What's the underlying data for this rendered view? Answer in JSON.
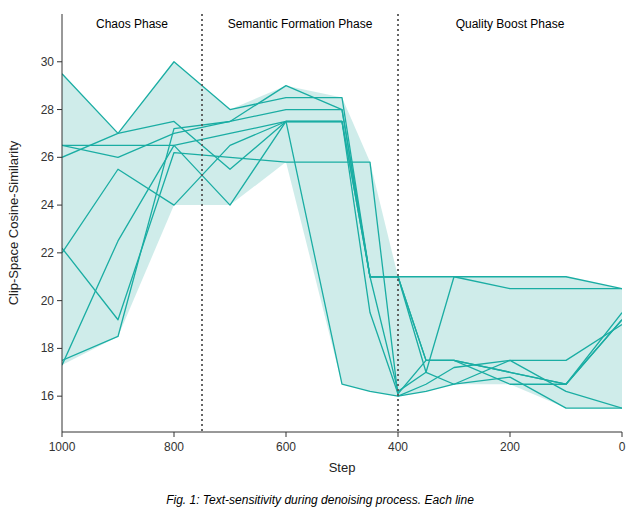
{
  "chart_data": {
    "type": "line",
    "xlabel": "Step",
    "ylabel": "Clip-Space Cosine-Similarity",
    "caption": "Fig. 1: Text-sensitivity during denoising process. Each line",
    "xlim": [
      1000,
      0
    ],
    "ylim": [
      14.5,
      32
    ],
    "xticks": [
      1000,
      800,
      600,
      400,
      200,
      0
    ],
    "yticks": [
      16,
      18,
      20,
      22,
      24,
      26,
      28,
      30
    ],
    "grid": false,
    "color": "#1aada3",
    "x": [
      1000,
      900,
      800,
      700,
      600,
      500,
      450,
      400,
      350,
      300,
      200,
      100,
      0
    ],
    "series": [
      {
        "values": [
          17.3,
          22.5,
          26.5,
          27.0,
          27.5,
          16.5,
          16.2,
          16.0,
          16.5,
          17.2,
          17.5,
          16.2,
          15.5
        ]
      },
      {
        "values": [
          29.5,
          27.0,
          30.0,
          28.0,
          28.5,
          28.5,
          21.0,
          21.0,
          17.5,
          17.5,
          17.0,
          16.5,
          19.2
        ]
      },
      {
        "values": [
          26.5,
          26.0,
          27.0,
          27.5,
          29.0,
          28.0,
          21.0,
          16.2,
          17.0,
          21.0,
          21.0,
          21.0,
          20.5
        ]
      },
      {
        "values": [
          22.2,
          19.2,
          26.2,
          26.0,
          25.8,
          25.8,
          25.8,
          16.0,
          16.2,
          16.5,
          16.8,
          15.5,
          15.5
        ]
      },
      {
        "values": [
          26.0,
          27.0,
          27.5,
          25.5,
          27.5,
          27.5,
          19.5,
          16.1,
          17.5,
          17.5,
          16.5,
          16.5,
          19.2
        ]
      },
      {
        "values": [
          22.0,
          25.5,
          24.0,
          26.5,
          27.5,
          27.5,
          21.0,
          21.0,
          21.0,
          21.0,
          20.5,
          20.5,
          20.5
        ]
      },
      {
        "values": [
          26.5,
          26.5,
          26.5,
          24.0,
          27.5,
          27.5,
          21.0,
          21.0,
          17.0,
          16.5,
          17.5,
          17.5,
          19.0
        ]
      },
      {
        "values": [
          17.5,
          18.5,
          27.2,
          27.5,
          28.0,
          28.0,
          21.0,
          21.0,
          17.5,
          17.5,
          17.0,
          16.5,
          19.5
        ]
      }
    ],
    "envelope": {
      "color": "#a8ddd8",
      "lower": [
        17.3,
        18.5,
        24.0,
        24.0,
        25.8,
        16.5,
        16.2,
        16.0,
        16.2,
        16.5,
        16.5,
        15.5,
        15.5
      ],
      "upper": [
        29.5,
        27.0,
        30.0,
        28.0,
        29.0,
        28.5,
        25.8,
        21.0,
        21.0,
        21.0,
        21.0,
        21.0,
        20.5
      ]
    },
    "vlines": {
      "values": [
        750,
        400
      ],
      "color": "#555555",
      "line_style": "dotted"
    },
    "annotations": [
      "Chaos Phase",
      "Semantic Formation Phase",
      "Quality Boost Phase"
    ]
  }
}
